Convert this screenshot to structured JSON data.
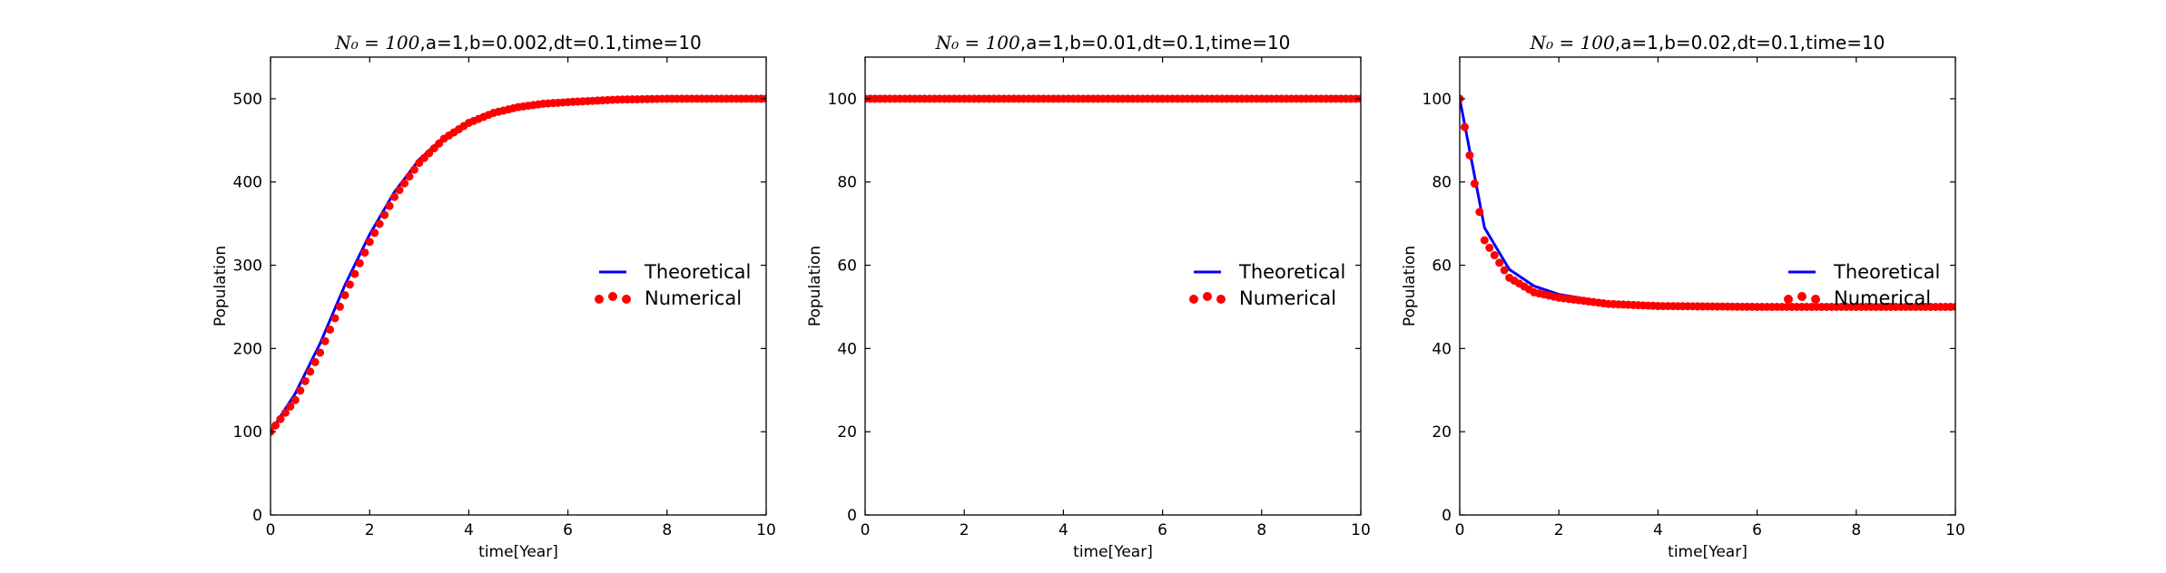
{
  "chart_data": [
    {
      "type": "line",
      "title": "N₀ = 100,a=1,b=0.002,dt=0.1,time=10",
      "title_math": "N₀ = 100",
      "title_rest": ",a=1,b=0.002,dt=0.1,time=10",
      "xlabel": "time[Year]",
      "ylabel": "Population",
      "xlim": [
        0,
        10
      ],
      "ylim": [
        0,
        550
      ],
      "xticks": [
        0,
        2,
        4,
        6,
        8,
        10
      ],
      "yticks": [
        0,
        100,
        200,
        300,
        400,
        500
      ],
      "legend_placement": "center-right",
      "grid": false,
      "model": {
        "N0": 100,
        "a": 1,
        "b": 0.002,
        "dt": 0.1,
        "time": 10
      },
      "series": [
        {
          "name": "Theoretical",
          "style": "line",
          "color": "#0000ff",
          "x": [
            0,
            0.5,
            1,
            1.5,
            2,
            2.5,
            3,
            3.5,
            4,
            4.5,
            5,
            5.5,
            6,
            7,
            8,
            9,
            10
          ],
          "values": [
            100,
            146,
            206,
            276,
            337,
            388,
            427,
            454,
            472,
            483,
            490,
            494,
            496,
            499,
            500,
            500,
            500
          ]
        },
        {
          "name": "Numerical",
          "style": "dots",
          "color": "#ff0000",
          "x": [
            0,
            0.5,
            1,
            1.5,
            2,
            2.5,
            3,
            3.5,
            4,
            4.5,
            5,
            5.5,
            6,
            7,
            8,
            9,
            10
          ],
          "values": [
            100,
            138,
            195,
            264,
            328,
            382,
            423,
            452,
            471,
            483,
            490,
            494,
            496,
            499,
            500,
            500,
            500
          ]
        }
      ]
    },
    {
      "type": "line",
      "title": "N₀ = 100,a=1,b=0.01,dt=0.1,time=10",
      "title_math": "N₀ = 100",
      "title_rest": ",a=1,b=0.01,dt=0.1,time=10",
      "xlabel": "time[Year]",
      "ylabel": "Population",
      "xlim": [
        0,
        10
      ],
      "ylim": [
        0,
        110
      ],
      "xticks": [
        0,
        2,
        4,
        6,
        8,
        10
      ],
      "yticks": [
        0,
        20,
        40,
        60,
        80,
        100
      ],
      "legend_placement": "center-right",
      "grid": false,
      "model": {
        "N0": 100,
        "a": 1,
        "b": 0.01,
        "dt": 0.1,
        "time": 10
      },
      "series": [
        {
          "name": "Theoretical",
          "style": "line",
          "color": "#0000ff",
          "x": [
            0,
            10
          ],
          "values": [
            100,
            100
          ]
        },
        {
          "name": "Numerical",
          "style": "dots",
          "color": "#ff0000",
          "x": [
            0,
            10
          ],
          "values": [
            100,
            100
          ]
        }
      ]
    },
    {
      "type": "line",
      "title": "N₀ = 100,a=1,b=0.02,dt=0.1,time=10",
      "title_math": "N₀ = 100",
      "title_rest": ",a=1,b=0.02,dt=0.1,time=10",
      "xlabel": "time[Year]",
      "ylabel": "Population",
      "xlim": [
        0,
        10
      ],
      "ylim": [
        0,
        110
      ],
      "xticks": [
        0,
        2,
        4,
        6,
        8,
        10
      ],
      "yticks": [
        0,
        20,
        40,
        60,
        80,
        100
      ],
      "legend_placement": "center-right",
      "grid": false,
      "model": {
        "N0": 100,
        "a": 1,
        "b": 0.02,
        "dt": 0.1,
        "time": 10
      },
      "series": [
        {
          "name": "Theoretical",
          "style": "line",
          "color": "#0000ff",
          "x": [
            0,
            0.5,
            1,
            1.5,
            2,
            3,
            4,
            5,
            6,
            8,
            10
          ],
          "values": [
            100,
            69,
            59,
            55,
            53,
            51,
            50.5,
            50.2,
            50.1,
            50,
            50
          ]
        },
        {
          "name": "Numerical",
          "style": "dots",
          "color": "#ff0000",
          "x": [
            0,
            0.5,
            1,
            1.5,
            2,
            3,
            4,
            5,
            6,
            8,
            10
          ],
          "values": [
            100,
            66,
            57,
            53.5,
            52.2,
            50.7,
            50.2,
            50.1,
            50,
            50,
            50
          ]
        }
      ]
    }
  ]
}
